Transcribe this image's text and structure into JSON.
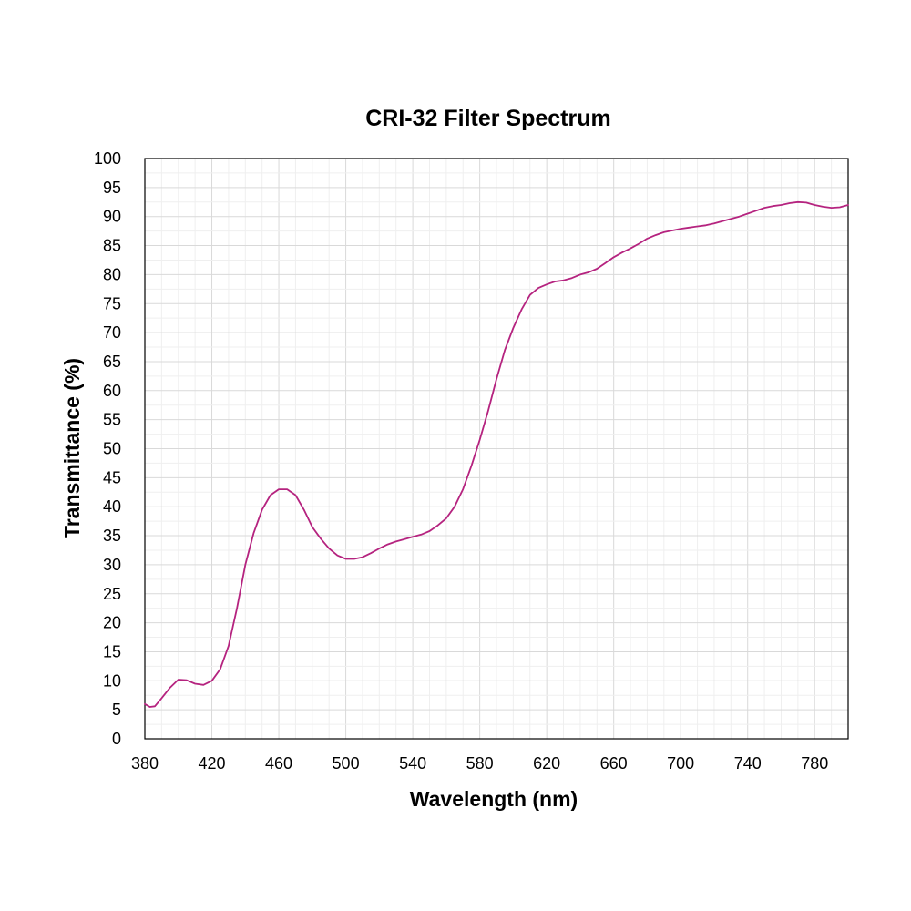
{
  "chart_data": {
    "type": "line",
    "title": "CRI-32 Filter Spectrum",
    "xlabel": "Wavelength (nm)",
    "ylabel": "Transmittance (%)",
    "xlim": [
      380,
      800
    ],
    "ylim": [
      0,
      100
    ],
    "xticks": [
      380,
      420,
      460,
      500,
      540,
      580,
      620,
      660,
      700,
      740,
      780
    ],
    "yticks": [
      0,
      5,
      10,
      15,
      20,
      25,
      30,
      35,
      40,
      45,
      50,
      55,
      60,
      65,
      70,
      75,
      80,
      85,
      90,
      95,
      100
    ],
    "grid": true,
    "legend": "none",
    "series": [
      {
        "color": "#b5237f",
        "x": [
          380,
          383,
          386,
          390,
          395,
          400,
          405,
          410,
          415,
          420,
          425,
          430,
          435,
          440,
          445,
          450,
          455,
          460,
          465,
          470,
          475,
          480,
          485,
          490,
          495,
          500,
          505,
          510,
          515,
          520,
          525,
          530,
          535,
          540,
          545,
          550,
          555,
          560,
          565,
          570,
          575,
          580,
          585,
          590,
          595,
          600,
          605,
          610,
          615,
          620,
          625,
          630,
          635,
          640,
          645,
          650,
          655,
          660,
          665,
          670,
          675,
          680,
          685,
          690,
          695,
          700,
          705,
          710,
          715,
          720,
          725,
          730,
          735,
          740,
          745,
          750,
          755,
          760,
          765,
          770,
          775,
          780,
          785,
          790,
          795,
          800
        ],
        "y": [
          6.0,
          5.5,
          5.6,
          7.0,
          8.8,
          10.2,
          10.1,
          9.5,
          9.3,
          10.0,
          12.0,
          16.0,
          22.5,
          30.0,
          35.5,
          39.5,
          42.0,
          43.0,
          43.0,
          42.0,
          39.5,
          36.5,
          34.5,
          32.8,
          31.6,
          31.0,
          31.0,
          31.3,
          32.0,
          32.8,
          33.5,
          34.0,
          34.4,
          34.8,
          35.2,
          35.8,
          36.8,
          38.0,
          40.0,
          43.0,
          47.0,
          51.5,
          56.5,
          62.0,
          67.0,
          70.8,
          74.0,
          76.5,
          77.7,
          78.3,
          78.8,
          79.0,
          79.4,
          80.0,
          80.4,
          81.0,
          82.0,
          83.0,
          83.8,
          84.5,
          85.3,
          86.2,
          86.8,
          87.3,
          87.6,
          87.9,
          88.1,
          88.3,
          88.5,
          88.8,
          89.2,
          89.6,
          90.0,
          90.5,
          91.0,
          91.5,
          91.8,
          92.0,
          92.3,
          92.5,
          92.4,
          92.0,
          91.7,
          91.5,
          91.6,
          92.0
        ]
      }
    ]
  }
}
